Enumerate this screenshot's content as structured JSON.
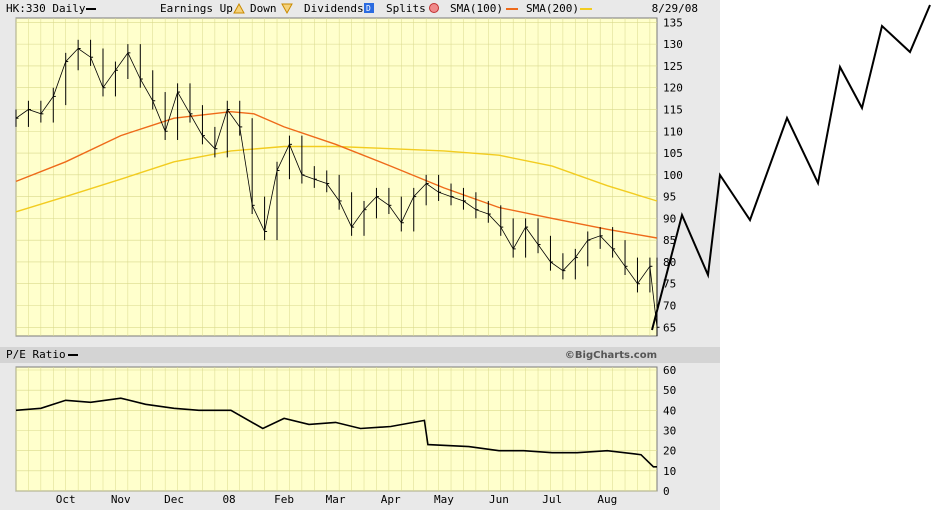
{
  "header": {
    "symbol_label": "HK:330 Daily",
    "earnings_label": "Earnings Up",
    "down_label": "Down",
    "dividends_label": "Dividends",
    "dividends_icon_text": "D",
    "splits_label": "Splits",
    "sma100_label": "SMA(100)",
    "sma200_label": "SMA(200)",
    "date": "8/29/08"
  },
  "pe_panel": {
    "label": "P/E Ratio",
    "credit": "©BigCharts.com"
  },
  "colors": {
    "plot_bg": "#ffffcc",
    "grid": "#d9d98c",
    "frame_bg": "#e9e9e9",
    "price": "#000000",
    "sma100": "#ee6a1a",
    "sma200": "#f2cc20",
    "earnings_up": "#e8a000",
    "down": "#e8a000",
    "dividends": "#2b6be0",
    "splits": "#e05a5a"
  },
  "chart_data": [
    {
      "type": "line",
      "title": "HK:330 Daily",
      "x_tick_labels": [
        "Oct",
        "Nov",
        "Dec",
        "08",
        "Feb",
        "Mar",
        "Apr",
        "May",
        "Jun",
        "Jul",
        "Aug"
      ],
      "y_ticks": [
        65,
        70,
        75,
        80,
        85,
        90,
        95,
        100,
        105,
        110,
        115,
        120,
        125,
        130,
        135
      ],
      "ylim": [
        63,
        136
      ],
      "grid": true,
      "series": [
        {
          "name": "HK:330 Daily",
          "x": [
            "2007-09-03",
            "2007-09-10",
            "2007-09-17",
            "2007-09-24",
            "2007-10-01",
            "2007-10-08",
            "2007-10-15",
            "2007-10-22",
            "2007-10-29",
            "2007-11-05",
            "2007-11-12",
            "2007-11-19",
            "2007-11-26",
            "2007-12-03",
            "2007-12-10",
            "2007-12-17",
            "2007-12-24",
            "2007-12-31",
            "2008-01-07",
            "2008-01-14",
            "2008-01-21",
            "2008-01-28",
            "2008-02-04",
            "2008-02-11",
            "2008-02-18",
            "2008-02-25",
            "2008-03-03",
            "2008-03-10",
            "2008-03-17",
            "2008-03-24",
            "2008-03-31",
            "2008-04-07",
            "2008-04-14",
            "2008-04-21",
            "2008-04-28",
            "2008-05-05",
            "2008-05-12",
            "2008-05-19",
            "2008-05-26",
            "2008-06-02",
            "2008-06-09",
            "2008-06-16",
            "2008-06-23",
            "2008-06-30",
            "2008-07-07",
            "2008-07-14",
            "2008-07-21",
            "2008-07-28",
            "2008-08-04",
            "2008-08-11",
            "2008-08-18",
            "2008-08-25",
            "2008-08-29"
          ],
          "values": [
            113,
            115,
            114,
            118,
            126,
            129,
            127,
            120,
            124,
            128,
            122,
            117,
            110,
            119,
            114,
            109,
            106,
            115,
            111,
            93,
            87,
            101,
            107,
            100,
            99,
            98,
            94,
            88,
            92,
            95,
            93,
            89,
            95,
            98,
            96,
            95,
            94,
            92,
            91,
            88,
            83,
            88,
            84,
            80,
            78,
            81,
            85,
            86,
            83,
            79,
            75,
            79,
            65
          ]
        },
        {
          "name": "SMA(100)",
          "x": [
            "2007-09-03",
            "2007-10-01",
            "2007-11-01",
            "2007-12-01",
            "2008-01-02",
            "2008-01-15",
            "2008-02-01",
            "2008-03-01",
            "2008-04-01",
            "2008-05-01",
            "2008-06-01",
            "2008-07-01",
            "2008-08-01",
            "2008-08-29"
          ],
          "values": [
            98.5,
            103,
            109,
            113,
            114.5,
            114,
            111,
            107,
            102,
            97,
            92.5,
            90,
            87.5,
            85.5
          ]
        },
        {
          "name": "SMA(200)",
          "x": [
            "2007-09-03",
            "2007-10-01",
            "2007-11-01",
            "2007-12-01",
            "2008-01-02",
            "2008-02-01",
            "2008-03-01",
            "2008-04-01",
            "2008-05-01",
            "2008-06-01",
            "2008-07-01",
            "2008-08-01",
            "2008-08-29"
          ],
          "values": [
            91.5,
            95,
            99,
            103,
            105.5,
            106.5,
            106.5,
            106,
            105.5,
            104.5,
            102,
            97.5,
            94
          ]
        }
      ]
    },
    {
      "type": "line",
      "title": "P/E Ratio",
      "x_tick_labels": [
        "Oct",
        "Nov",
        "Dec",
        "08",
        "Feb",
        "Mar",
        "Apr",
        "May",
        "Jun",
        "Jul",
        "Aug"
      ],
      "y_ticks": [
        0,
        10,
        20,
        30,
        40,
        50,
        60
      ],
      "ylim": [
        0,
        60
      ],
      "grid": true,
      "series": [
        {
          "name": "P/E Ratio",
          "x": [
            "2007-09-03",
            "2007-09-17",
            "2007-10-01",
            "2007-10-15",
            "2007-11-01",
            "2007-11-15",
            "2007-12-01",
            "2007-12-15",
            "2008-01-02",
            "2008-01-20",
            "2008-02-01",
            "2008-02-15",
            "2008-03-01",
            "2008-03-15",
            "2008-04-01",
            "2008-04-20",
            "2008-04-22",
            "2008-05-15",
            "2008-06-01",
            "2008-06-15",
            "2008-07-01",
            "2008-07-15",
            "2008-08-01",
            "2008-08-20",
            "2008-08-27",
            "2008-08-29"
          ],
          "values": [
            40,
            41,
            45,
            44,
            46,
            43,
            41,
            40,
            40,
            31,
            36,
            33,
            34,
            31,
            32,
            35,
            23,
            22,
            20,
            20,
            19,
            19,
            20,
            18,
            12,
            12
          ]
        }
      ]
    }
  ]
}
